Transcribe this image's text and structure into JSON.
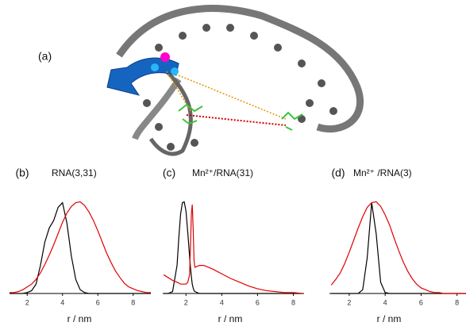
{
  "panel_a": {
    "label": "(a)"
  },
  "chart_data": [
    {
      "type": "line",
      "label": "(b)",
      "title": "RNA(3,31)",
      "xlabel": "r / nm",
      "xlim": [
        1,
        9
      ],
      "xticks": [
        2,
        4,
        6,
        8
      ],
      "ylim": [
        0,
        1
      ],
      "x": [
        1,
        1.25,
        1.5,
        1.75,
        2,
        2.25,
        2.5,
        2.75,
        3,
        3.25,
        3.5,
        3.75,
        4,
        4.25,
        4.5,
        4.75,
        5,
        5.25,
        5.5,
        5.75,
        6,
        6.25,
        6.5,
        6.75,
        7,
        7.25,
        7.5,
        7.75,
        8,
        8.25,
        8.5,
        8.75,
        9
      ],
      "series": [
        {
          "color": "#000000",
          "values": [
            0,
            0,
            0,
            0,
            0.01,
            0.03,
            0.1,
            0.3,
            0.55,
            0.7,
            0.78,
            0.92,
            0.97,
            0.75,
            0.4,
            0.15,
            0.04,
            0.01,
            0,
            0,
            0,
            0,
            0,
            0,
            0,
            0,
            0,
            0,
            0,
            0,
            0,
            0,
            0
          ]
        },
        {
          "color": "#e00000",
          "values": [
            0.01,
            0.01,
            0.02,
            0.04,
            0.07,
            0.1,
            0.15,
            0.22,
            0.31,
            0.41,
            0.52,
            0.64,
            0.76,
            0.86,
            0.93,
            0.97,
            0.98,
            0.94,
            0.87,
            0.78,
            0.67,
            0.55,
            0.43,
            0.33,
            0.24,
            0.17,
            0.11,
            0.07,
            0.05,
            0.03,
            0.02,
            0.01,
            0.01
          ]
        }
      ]
    },
    {
      "type": "line",
      "label": "(c)",
      "title": "Mn²⁺/RNA(31)",
      "xlabel": "r / nm",
      "xlim": [
        0.7,
        8.6
      ],
      "xticks": [
        2,
        4,
        6,
        8
      ],
      "ylim": [
        0,
        1
      ],
      "x": [
        0.75,
        1,
        1.25,
        1.5,
        1.6,
        1.7,
        1.8,
        1.9,
        2,
        2.1,
        2.2,
        2.25,
        2.3,
        2.35,
        2.4,
        2.45,
        2.5,
        2.75,
        3,
        3.25,
        3.5,
        4,
        4.5,
        5,
        5.5,
        6,
        6.5,
        7,
        7.5,
        8,
        8.5
      ],
      "series": [
        {
          "color": "#000000",
          "values": [
            0,
            0,
            0.02,
            0.3,
            0.6,
            0.85,
            0.97,
            0.98,
            0.88,
            0.65,
            0.4,
            0.28,
            0.18,
            0.1,
            0.06,
            0.03,
            0.02,
            0,
            0,
            0,
            0,
            0,
            0,
            0,
            0,
            0,
            0,
            0,
            0,
            0,
            0
          ]
        },
        {
          "color": "#e00000",
          "values": [
            0.2,
            0.17,
            0.14,
            0.12,
            0.11,
            0.1,
            0.1,
            0.1,
            0.1,
            0.12,
            0.2,
            0.5,
            0.85,
            0.95,
            0.7,
            0.35,
            0.28,
            0.3,
            0.3,
            0.28,
            0.26,
            0.21,
            0.16,
            0.12,
            0.08,
            0.05,
            0.03,
            0.02,
            0.01,
            0.01,
            0
          ]
        }
      ]
    },
    {
      "type": "line",
      "label": "(d)",
      "title": "Mn²⁺ /RNA(3)",
      "xlabel": "r / nm",
      "xlim": [
        0.9,
        8.5
      ],
      "xticks": [
        2,
        4,
        6,
        8
      ],
      "ylim": [
        0,
        1
      ],
      "x": [
        1,
        1.25,
        1.5,
        1.75,
        2,
        2.25,
        2.5,
        2.75,
        3,
        3.25,
        3.5,
        3.75,
        4,
        4.25,
        4.5,
        4.75,
        5,
        5.25,
        5.5,
        5.75,
        6,
        6.25,
        6.5,
        6.75,
        7,
        7.25,
        7.5,
        7.75,
        8,
        8.25,
        8.5
      ],
      "series": [
        {
          "color": "#000000",
          "values": [
            0,
            0,
            0,
            0,
            0,
            0,
            0,
            0.04,
            0.38,
            0.97,
            0.64,
            0.12,
            0.01,
            0,
            0,
            0,
            0,
            0,
            0,
            0,
            0,
            0,
            0,
            0,
            0,
            0,
            0,
            0,
            0,
            0,
            0
          ]
        },
        {
          "color": "#e00000",
          "values": [
            0.09,
            0.15,
            0.22,
            0.32,
            0.44,
            0.57,
            0.7,
            0.82,
            0.92,
            0.97,
            0.98,
            0.93,
            0.84,
            0.73,
            0.59,
            0.46,
            0.34,
            0.24,
            0.16,
            0.1,
            0.06,
            0.04,
            0.02,
            0.01,
            0.01,
            0,
            0,
            0,
            0,
            0,
            0
          ]
        }
      ]
    }
  ]
}
